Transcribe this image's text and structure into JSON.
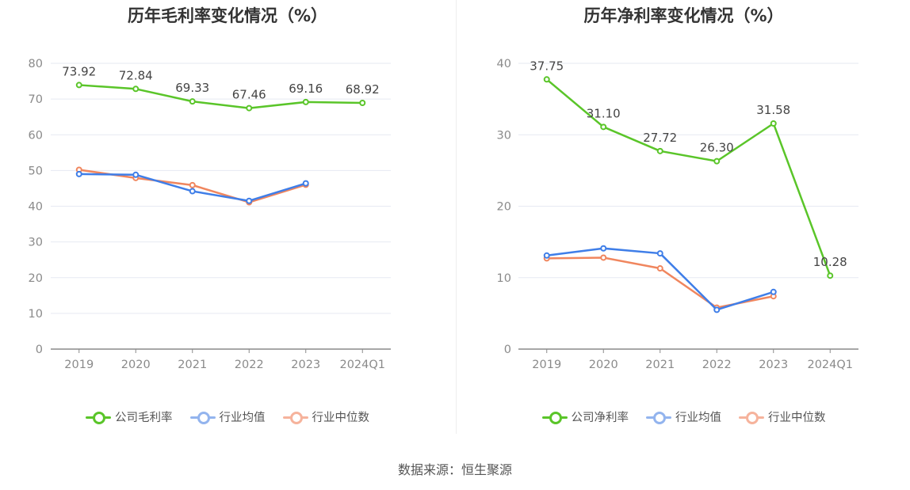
{
  "chart_data": [
    {
      "type": "line",
      "title": "历年毛利率变化情况（%）",
      "categories": [
        "2019",
        "2020",
        "2021",
        "2022",
        "2023",
        "2024Q1"
      ],
      "ylim": [
        0,
        80
      ],
      "yticks": [
        0,
        10,
        20,
        30,
        40,
        50,
        60,
        70,
        80
      ],
      "grid": true,
      "legend_position": "bottom",
      "series": [
        {
          "name": "公司毛利率",
          "color": "#5ac529",
          "values": [
            73.92,
            72.84,
            69.33,
            67.46,
            69.16,
            68.92
          ],
          "labels": [
            "73.92",
            "72.84",
            "69.33",
            "67.46",
            "69.16",
            "68.92"
          ]
        },
        {
          "name": "行业均值",
          "color": "#3f7ee8",
          "values": [
            49.0,
            48.8,
            44.2,
            41.5,
            46.4,
            null
          ]
        },
        {
          "name": "行业中位数",
          "color": "#f0865e",
          "values": [
            50.2,
            47.9,
            45.9,
            41.1,
            46.0,
            null
          ]
        }
      ]
    },
    {
      "type": "line",
      "title": "历年净利率变化情况（%）",
      "categories": [
        "2019",
        "2020",
        "2021",
        "2022",
        "2023",
        "2024Q1"
      ],
      "ylim": [
        0,
        40
      ],
      "yticks": [
        0,
        10,
        20,
        30,
        40
      ],
      "grid": true,
      "legend_position": "bottom",
      "series": [
        {
          "name": "公司净利率",
          "color": "#5ac529",
          "values": [
            37.75,
            31.1,
            27.72,
            26.3,
            31.58,
            10.28
          ],
          "labels": [
            "37.75",
            "31.10",
            "27.72",
            "26.30",
            "31.58",
            "10.28"
          ]
        },
        {
          "name": "行业均值",
          "color": "#3f7ee8",
          "values": [
            13.1,
            14.1,
            13.4,
            5.5,
            8.0,
            null
          ]
        },
        {
          "name": "行业中位数",
          "color": "#f0865e",
          "values": [
            12.7,
            12.8,
            11.3,
            5.8,
            7.4,
            null
          ]
        }
      ]
    }
  ],
  "legend_icon_colors": {
    "公司": "#5ac529",
    "行业均值": "#93b4ee",
    "行业中位数": "#f6b39c"
  },
  "source": "数据来源：恒生聚源"
}
